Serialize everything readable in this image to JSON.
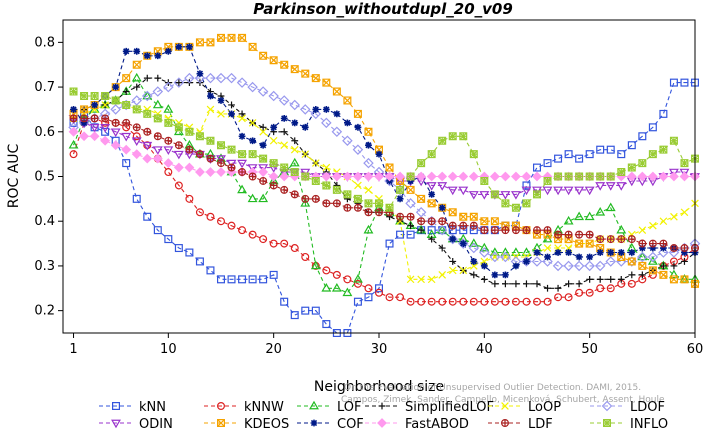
{
  "chart_data": {
    "type": "line",
    "title": "Parkinson_withoutdupl_20_v09",
    "xlabel": "Neighborhood size",
    "ylabel": "ROC AUC",
    "xlim": [
      0,
      60
    ],
    "ylim": [
      0.15,
      0.85
    ],
    "xticks": [
      "1",
      "10",
      "20",
      "30",
      "40",
      "50",
      "60"
    ],
    "yticks": [
      "0.2",
      "0.3",
      "0.4",
      "0.5",
      "0.6",
      "0.7",
      "0.8"
    ],
    "grid": false,
    "legend_position": "bottom",
    "citation_line1": "Campos, Zimek, Sander, Campello, Micenková, Schubert, Assent, Houle",
    "citation_line2": "On the Evaluation of Unsupervised Outlier Detection. DAMI, 2015.",
    "series": [
      {
        "name": "kNN",
        "color": "#3355dd",
        "marker": "square",
        "values": [
          0.62,
          0.64,
          0.61,
          0.6,
          0.58,
          0.53,
          0.45,
          0.41,
          0.38,
          0.36,
          0.34,
          0.33,
          0.31,
          0.29,
          0.27,
          0.27,
          0.27,
          0.27,
          0.27,
          0.28,
          0.22,
          0.19,
          0.2,
          0.2,
          0.17,
          0.15,
          0.15,
          0.22,
          0.23,
          0.25,
          0.35,
          0.37,
          0.37,
          0.38,
          0.38,
          0.38,
          0.38,
          0.38,
          0.38,
          0.38,
          0.38,
          0.39,
          0.39,
          0.48,
          0.52,
          0.53,
          0.54,
          0.55,
          0.54,
          0.55,
          0.56,
          0.56,
          0.55,
          0.57,
          0.59,
          0.61,
          0.64,
          0.71,
          0.71,
          0.71
        ]
      },
      {
        "name": "kNNW",
        "color": "#dd2222",
        "marker": "circle",
        "values": [
          0.55,
          0.62,
          0.63,
          0.62,
          0.62,
          0.61,
          0.59,
          0.57,
          0.54,
          0.51,
          0.48,
          0.45,
          0.42,
          0.41,
          0.4,
          0.39,
          0.38,
          0.37,
          0.36,
          0.35,
          0.35,
          0.34,
          0.32,
          0.3,
          0.29,
          0.28,
          0.27,
          0.26,
          0.25,
          0.24,
          0.23,
          0.23,
          0.22,
          0.22,
          0.22,
          0.22,
          0.22,
          0.22,
          0.22,
          0.22,
          0.22,
          0.22,
          0.22,
          0.22,
          0.22,
          0.22,
          0.23,
          0.23,
          0.24,
          0.24,
          0.25,
          0.25,
          0.26,
          0.26,
          0.27,
          0.28,
          0.3,
          0.31,
          0.32,
          0.34
        ]
      },
      {
        "name": "LOF",
        "color": "#22bb22",
        "marker": "triangle",
        "values": [
          0.57,
          0.63,
          0.65,
          0.66,
          0.67,
          0.69,
          0.72,
          0.68,
          0.66,
          0.65,
          0.6,
          0.57,
          0.55,
          0.55,
          0.54,
          0.51,
          0.47,
          0.45,
          0.45,
          0.49,
          0.51,
          0.53,
          0.44,
          0.3,
          0.25,
          0.25,
          0.24,
          0.27,
          0.38,
          0.43,
          0.42,
          0.4,
          0.39,
          0.38,
          0.37,
          0.38,
          0.36,
          0.36,
          0.35,
          0.34,
          0.33,
          0.33,
          0.33,
          0.33,
          0.34,
          0.36,
          0.38,
          0.4,
          0.41,
          0.41,
          0.42,
          0.43,
          0.38,
          0.34,
          0.32,
          0.31,
          0.3,
          0.28,
          0.27,
          0.27
        ]
      },
      {
        "name": "SimplifiedLOF",
        "color": "#111111",
        "marker": "plus",
        "values": [
          0.65,
          0.65,
          0.66,
          0.66,
          0.67,
          0.69,
          0.7,
          0.72,
          0.72,
          0.71,
          0.71,
          0.71,
          0.71,
          0.69,
          0.68,
          0.66,
          0.64,
          0.62,
          0.61,
          0.6,
          0.6,
          0.58,
          0.55,
          0.53,
          0.51,
          0.48,
          0.45,
          0.44,
          0.42,
          0.42,
          0.41,
          0.4,
          0.39,
          0.38,
          0.36,
          0.34,
          0.31,
          0.29,
          0.28,
          0.27,
          0.26,
          0.26,
          0.26,
          0.26,
          0.26,
          0.25,
          0.25,
          0.26,
          0.26,
          0.27,
          0.27,
          0.27,
          0.27,
          0.28,
          0.28,
          0.29,
          0.3,
          0.3,
          0.31,
          0.33
        ]
      },
      {
        "name": "LoOP",
        "color": "#f2f200",
        "marker": "x",
        "values": [
          0.63,
          0.64,
          0.65,
          0.66,
          0.67,
          0.66,
          0.65,
          0.65,
          0.64,
          0.63,
          0.62,
          0.61,
          0.6,
          0.65,
          0.64,
          0.64,
          0.63,
          0.62,
          0.6,
          0.58,
          0.57,
          0.56,
          0.55,
          0.53,
          0.52,
          0.51,
          0.5,
          0.48,
          0.47,
          0.45,
          0.43,
          0.4,
          0.27,
          0.27,
          0.27,
          0.28,
          0.29,
          0.29,
          0.3,
          0.31,
          0.32,
          0.32,
          0.32,
          0.32,
          0.33,
          0.34,
          0.34,
          0.34,
          0.35,
          0.35,
          0.36,
          0.36,
          0.36,
          0.37,
          0.38,
          0.39,
          0.4,
          0.41,
          0.42,
          0.44
        ]
      },
      {
        "name": "LDOF",
        "color": "#9999ee",
        "marker": "diamond",
        "values": [
          0.61,
          0.62,
          0.63,
          0.64,
          0.65,
          0.66,
          0.67,
          0.68,
          0.69,
          0.7,
          0.71,
          0.72,
          0.72,
          0.72,
          0.72,
          0.72,
          0.71,
          0.7,
          0.69,
          0.68,
          0.67,
          0.66,
          0.65,
          0.64,
          0.62,
          0.6,
          0.58,
          0.56,
          0.53,
          0.51,
          0.49,
          0.47,
          0.44,
          0.42,
          0.4,
          0.38,
          0.36,
          0.35,
          0.34,
          0.33,
          0.32,
          0.32,
          0.31,
          0.31,
          0.31,
          0.31,
          0.3,
          0.3,
          0.3,
          0.3,
          0.3,
          0.31,
          0.31,
          0.31,
          0.32,
          0.32,
          0.33,
          0.33,
          0.34,
          0.35
        ]
      },
      {
        "name": "ODIN",
        "color": "#9933cc",
        "marker": "triangle-down",
        "values": [
          0.63,
          0.62,
          0.61,
          0.61,
          0.6,
          0.59,
          0.58,
          0.57,
          0.56,
          0.56,
          0.55,
          0.55,
          0.55,
          0.54,
          0.54,
          0.53,
          0.53,
          0.52,
          0.52,
          0.52,
          0.51,
          0.51,
          0.51,
          0.5,
          0.5,
          0.5,
          0.5,
          0.5,
          0.5,
          0.5,
          0.5,
          0.49,
          0.49,
          0.49,
          0.48,
          0.48,
          0.47,
          0.47,
          0.46,
          0.46,
          0.46,
          0.46,
          0.46,
          0.47,
          0.47,
          0.47,
          0.47,
          0.47,
          0.47,
          0.47,
          0.48,
          0.48,
          0.48,
          0.49,
          0.49,
          0.49,
          0.5,
          0.51,
          0.51,
          0.5
        ]
      },
      {
        "name": "KDEOS",
        "color": "#f5a300",
        "marker": "square-x",
        "values": [
          0.64,
          0.65,
          0.66,
          0.68,
          0.7,
          0.72,
          0.75,
          0.77,
          0.78,
          0.79,
          0.79,
          0.79,
          0.8,
          0.8,
          0.81,
          0.81,
          0.81,
          0.79,
          0.77,
          0.76,
          0.75,
          0.74,
          0.73,
          0.72,
          0.71,
          0.69,
          0.67,
          0.64,
          0.6,
          0.56,
          0.52,
          0.49,
          0.47,
          0.45,
          0.44,
          0.43,
          0.42,
          0.41,
          0.41,
          0.4,
          0.4,
          0.39,
          0.39,
          0.38,
          0.37,
          0.37,
          0.36,
          0.36,
          0.35,
          0.35,
          0.34,
          0.33,
          0.32,
          0.31,
          0.3,
          0.29,
          0.28,
          0.27,
          0.27,
          0.26
        ]
      },
      {
        "name": "COF",
        "color": "#001a88",
        "marker": "star",
        "values": [
          0.65,
          0.62,
          0.66,
          0.68,
          0.7,
          0.78,
          0.78,
          0.77,
          0.77,
          0.78,
          0.79,
          0.79,
          0.73,
          0.68,
          0.67,
          0.64,
          0.59,
          0.58,
          0.57,
          0.61,
          0.63,
          0.62,
          0.61,
          0.65,
          0.65,
          0.64,
          0.62,
          0.61,
          0.57,
          0.55,
          0.49,
          0.45,
          0.49,
          0.5,
          0.46,
          0.43,
          0.36,
          0.35,
          0.31,
          0.3,
          0.28,
          0.28,
          0.3,
          0.31,
          0.33,
          0.32,
          0.33,
          0.33,
          0.32,
          0.32,
          0.33,
          0.33,
          0.33,
          0.33,
          0.34,
          0.34,
          0.34,
          0.34,
          0.33,
          0.33
        ]
      },
      {
        "name": "FastABOD",
        "color": "#ff99ee",
        "marker": "diamond-filled",
        "values": [
          0.6,
          0.59,
          0.59,
          0.58,
          0.57,
          0.56,
          0.55,
          0.54,
          0.54,
          0.53,
          0.52,
          0.52,
          0.51,
          0.51,
          0.51,
          0.51,
          0.51,
          0.51,
          0.51,
          0.5,
          0.5,
          0.5,
          0.5,
          0.5,
          0.5,
          0.5,
          0.5,
          0.5,
          0.5,
          0.5,
          0.5,
          0.5,
          0.5,
          0.5,
          0.5,
          0.5,
          0.5,
          0.5,
          0.5,
          0.5,
          0.5,
          0.5,
          0.5,
          0.5,
          0.5,
          0.5,
          0.5,
          0.5,
          0.5,
          0.5,
          0.5,
          0.5,
          0.5,
          0.5,
          0.5,
          0.5,
          0.5,
          0.5,
          0.5,
          0.5
        ]
      },
      {
        "name": "LDF",
        "color": "#aa2222",
        "marker": "circle-plus",
        "values": [
          0.63,
          0.63,
          0.63,
          0.63,
          0.62,
          0.62,
          0.61,
          0.6,
          0.59,
          0.58,
          0.57,
          0.56,
          0.55,
          0.54,
          0.53,
          0.52,
          0.51,
          0.5,
          0.49,
          0.48,
          0.47,
          0.46,
          0.45,
          0.45,
          0.44,
          0.44,
          0.43,
          0.43,
          0.42,
          0.42,
          0.42,
          0.41,
          0.41,
          0.4,
          0.4,
          0.4,
          0.39,
          0.39,
          0.39,
          0.38,
          0.38,
          0.38,
          0.38,
          0.38,
          0.38,
          0.38,
          0.37,
          0.37,
          0.37,
          0.37,
          0.36,
          0.36,
          0.36,
          0.36,
          0.35,
          0.35,
          0.35,
          0.34,
          0.34,
          0.34
        ]
      },
      {
        "name": "INFLO",
        "color": "#99cc33",
        "marker": "square-star",
        "values": [
          0.69,
          0.68,
          0.68,
          0.68,
          0.67,
          0.66,
          0.65,
          0.64,
          0.63,
          0.62,
          0.61,
          0.6,
          0.59,
          0.58,
          0.57,
          0.56,
          0.55,
          0.55,
          0.54,
          0.53,
          0.52,
          0.51,
          0.5,
          0.49,
          0.48,
          0.47,
          0.46,
          0.45,
          0.44,
          0.44,
          0.43,
          0.47,
          0.5,
          0.53,
          0.55,
          0.58,
          0.59,
          0.59,
          0.55,
          0.49,
          0.46,
          0.44,
          0.43,
          0.44,
          0.46,
          0.49,
          0.5,
          0.5,
          0.5,
          0.5,
          0.5,
          0.5,
          0.51,
          0.52,
          0.53,
          0.55,
          0.56,
          0.58,
          0.53,
          0.54
        ]
      }
    ]
  }
}
